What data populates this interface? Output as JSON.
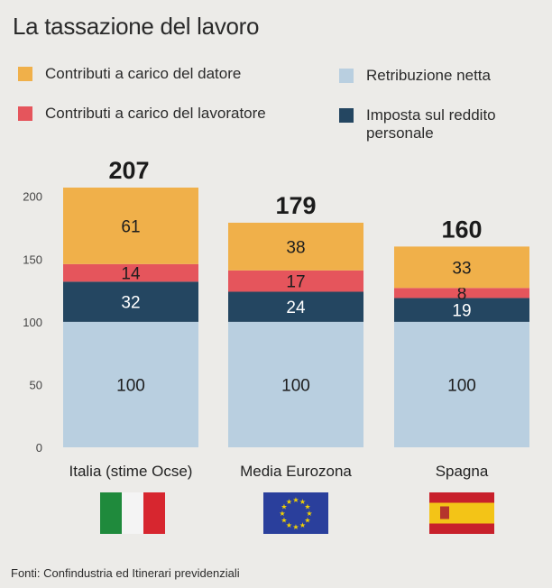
{
  "title": "La tassazione del lavoro",
  "legend": [
    {
      "label": "Contributi a carico del datore",
      "color": "#f0b04a"
    },
    {
      "label": "Contributi a carico del lavoratore",
      "color": "#e5555c"
    },
    {
      "label": "Retribuzione netta",
      "color": "#b9cfe0"
    },
    {
      "label": "Imposta sul reddito personale",
      "color": "#244661"
    }
  ],
  "source": "Fonti: Confindustria ed Itinerari previdenziali",
  "chart_data": {
    "type": "bar",
    "stacked": true,
    "categories": [
      "Italia (stime Ocse)",
      "Media Eurozona",
      "Spagna"
    ],
    "totals": [
      207,
      179,
      160
    ],
    "series": [
      {
        "name": "Retribuzione netta",
        "values": [
          100,
          100,
          100
        ],
        "color": "#b9cfe0"
      },
      {
        "name": "Imposta sul reddito personale",
        "values": [
          32,
          24,
          19
        ],
        "color": "#244661"
      },
      {
        "name": "Contributi a carico del lavoratore",
        "values": [
          14,
          17,
          8
        ],
        "color": "#e5555c"
      },
      {
        "name": "Contributi a carico del datore",
        "values": [
          61,
          38,
          33
        ],
        "color": "#f0b04a"
      }
    ],
    "ylim": [
      0,
      207
    ],
    "yticks": [
      0,
      50,
      100,
      150,
      200
    ],
    "flags": [
      "italy-flag",
      "eu-flag",
      "spain-flag"
    ]
  }
}
